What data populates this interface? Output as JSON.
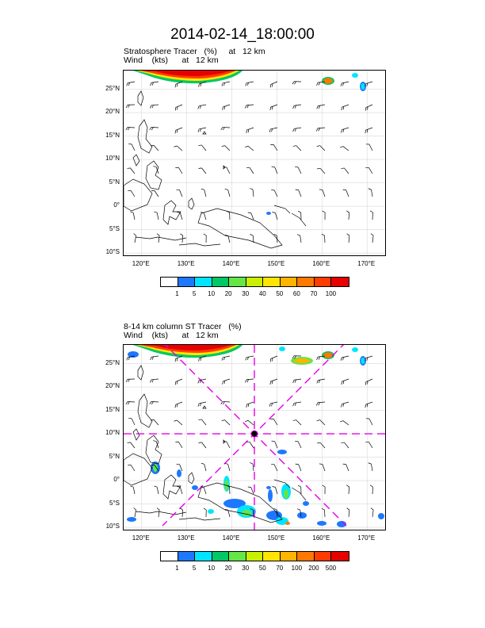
{
  "title": "2014-02-14_18:00:00",
  "panel1": {
    "title_line1": "Stratosphere Tracer   (%)     at   12 km",
    "title_line2": "Wind    (kts)      at   12 km",
    "lat_labels": [
      "25°N",
      "20°N",
      "15°N",
      "10°N",
      "5°N",
      "0°",
      "5°S",
      "10°S"
    ],
    "lon_labels": [
      "120°E",
      "130°E",
      "140°E",
      "150°E",
      "160°E",
      "170°E"
    ],
    "colorbar_labels": [
      "1",
      "5",
      "10",
      "20",
      "30",
      "40",
      "50",
      "60",
      "70",
      "100"
    ],
    "colorbar_colors": [
      "#ffffff",
      "#1e78ff",
      "#00e5ff",
      "#00c864",
      "#64e646",
      "#c8f000",
      "#ffe600",
      "#ffb400",
      "#ff7800",
      "#ff3c00",
      "#e60000"
    ]
  },
  "panel2": {
    "title_line1": "8-14 km column ST Tracer   (%)",
    "title_line2": "Wind    (kts)      at   12 km",
    "lat_labels": [
      "25°N",
      "20°N",
      "15°N",
      "10°N",
      "5°N",
      "0°",
      "5°S",
      "10°S"
    ],
    "lon_labels": [
      "120°E",
      "130°E",
      "140°E",
      "150°E",
      "160°E",
      "170°E"
    ],
    "colorbar_labels": [
      "1",
      "5",
      "10",
      "20",
      "30",
      "50",
      "70",
      "100",
      "200",
      "500"
    ],
    "colorbar_colors": [
      "#ffffff",
      "#1e78ff",
      "#00e5ff",
      "#00c864",
      "#64e646",
      "#c8f000",
      "#ffe600",
      "#ffb400",
      "#ff7800",
      "#ff3c00",
      "#e60000"
    ],
    "crosshair_color": "#e600e6"
  }
}
